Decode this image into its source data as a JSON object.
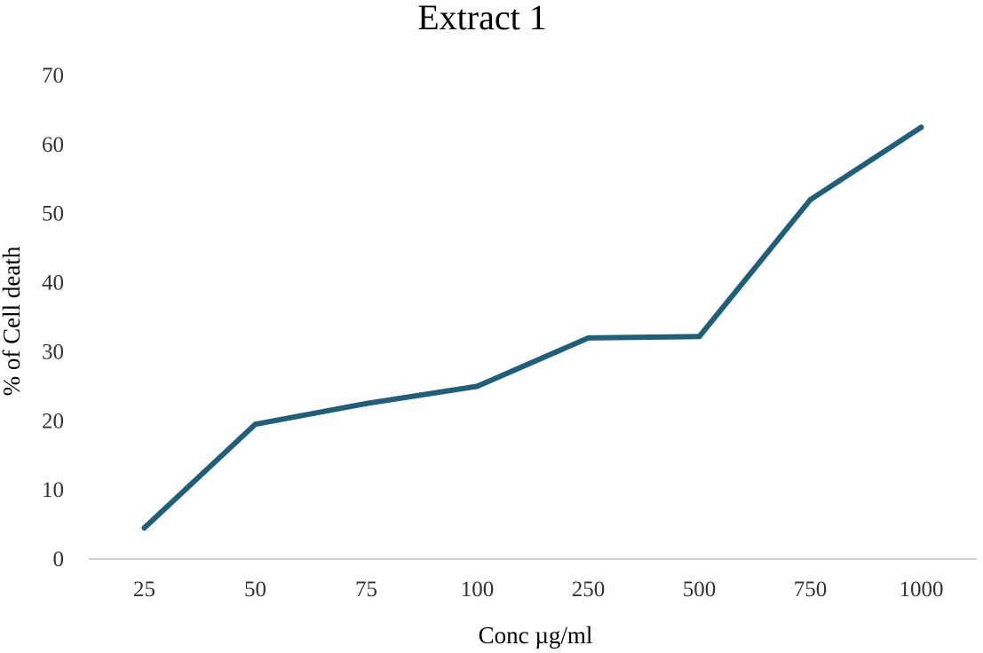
{
  "chart_data": {
    "type": "line",
    "title": "Extract 1",
    "xlabel": "Conc µg/ml",
    "ylabel": "% of Cell death",
    "categories": [
      "25",
      "50",
      "75",
      "100",
      "250",
      "500",
      "750",
      "1000"
    ],
    "series": [
      {
        "values": [
          4.5,
          19.5,
          22.5,
          25,
          32,
          32.2,
          52,
          62.5
        ]
      }
    ],
    "ylim": [
      0,
      70
    ],
    "yticks": [
      "0",
      "10",
      "20",
      "30",
      "40",
      "50",
      "60",
      "70"
    ],
    "grid": false,
    "legend": "none",
    "colors": {
      "series": "#1f5f7a",
      "axis": "#d0d0d0"
    }
  }
}
